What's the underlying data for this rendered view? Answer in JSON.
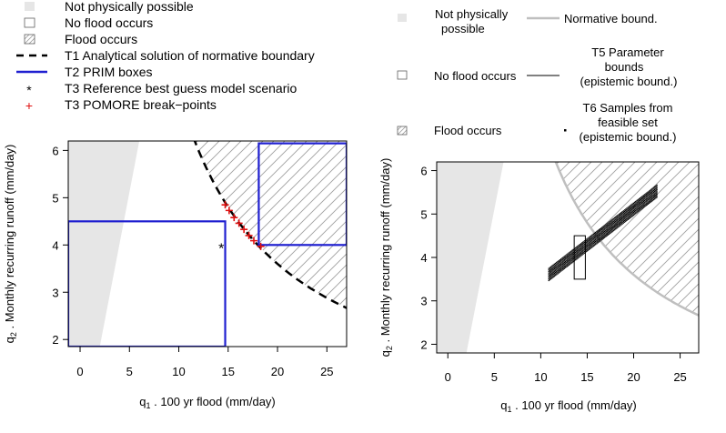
{
  "colors": {
    "infeasible_fill": "#e6e6e6",
    "hatch": "#a0a0a0",
    "prim_box": "#1f1fd0",
    "pomore": "#e01010",
    "normative_gray": "#bfbfbf",
    "ink": "#000000"
  },
  "left_legend": {
    "items": [
      {
        "key": "not-possible",
        "label": "Not physically possible"
      },
      {
        "key": "no-flood",
        "label": "No flood occurs"
      },
      {
        "key": "flood",
        "label": "Flood occurs"
      },
      {
        "key": "t1",
        "label": "T1 Analytical solution of normative boundary"
      },
      {
        "key": "t2",
        "label": "T2 PRIM boxes"
      },
      {
        "key": "t3ref",
        "label": "T3 Reference best guess model scenario"
      },
      {
        "key": "t3pom",
        "label": "T3 POMORE break−points"
      }
    ]
  },
  "right_legend": {
    "not_possible": [
      "Not physically",
      "possible"
    ],
    "normative": "Normative bound.",
    "no_flood": "No flood occurs",
    "t5": [
      "T5 Parameter",
      "bounds",
      "(epistemic bound.)"
    ],
    "flood": "Flood occurs",
    "t6": [
      "T6 Samples from",
      "feasible set",
      "(epistemic bound.)"
    ]
  },
  "chart_data": [
    {
      "type": "scatter",
      "xlabel_main": "q",
      "xlabel_sub": "1",
      "xlabel_rest": " . 100 yr flood (mm/day)",
      "ylabel_main": "q",
      "ylabel_sub": "2",
      "ylabel_rest": " . Monthly recurring runoff (mm/day)",
      "xlim": [
        -1.2,
        27
      ],
      "ylim": [
        1.85,
        6.2
      ],
      "xticks": [
        0,
        5,
        10,
        15,
        20,
        25
      ],
      "yticks": [
        2,
        3,
        4,
        5,
        6
      ],
      "infeasible_polygon": [
        [
          -1.2,
          1.85
        ],
        [
          2.0,
          1.85
        ],
        [
          6.0,
          6.2
        ],
        [
          -1.2,
          6.2
        ]
      ],
      "normative_boundary": "y = 72 / x",
      "prim_boxes": [
        {
          "x": [
            -1.2,
            14.7
          ],
          "y": [
            1.85,
            4.5
          ]
        },
        {
          "x": [
            18.1,
            27
          ],
          "y": [
            4.0,
            6.15
          ]
        }
      ],
      "reference_point": {
        "x": 14.3,
        "y": 4.0
      },
      "pomore_points": [
        {
          "x": 14.7,
          "y": 4.85
        },
        {
          "x": 15.1,
          "y": 4.73
        },
        {
          "x": 15.6,
          "y": 4.58
        },
        {
          "x": 16.1,
          "y": 4.46
        },
        {
          "x": 16.6,
          "y": 4.33
        },
        {
          "x": 17.1,
          "y": 4.2
        },
        {
          "x": 17.6,
          "y": 4.09
        },
        {
          "x": 18.3,
          "y": 3.97
        }
      ]
    },
    {
      "type": "scatter",
      "xlabel_main": "q",
      "xlabel_sub": "1",
      "xlabel_rest": " . 100 yr flood (mm/day)",
      "ylabel_main": "q",
      "ylabel_sub": "2",
      "ylabel_rest": " . Monthly recurring runoff (mm/day)",
      "xlim": [
        -1.2,
        27
      ],
      "ylim": [
        1.8,
        6.2
      ],
      "xticks": [
        0,
        5,
        10,
        15,
        20,
        25
      ],
      "yticks": [
        2,
        3,
        4,
        5,
        6
      ],
      "infeasible_polygon": [
        [
          -1.2,
          1.8
        ],
        [
          2.0,
          1.8
        ],
        [
          6.0,
          6.2
        ],
        [
          -1.2,
          6.2
        ]
      ],
      "normative_boundary": "y = 72 / x",
      "parameter_box": {
        "x": [
          13.6,
          14.8
        ],
        "y": [
          3.5,
          4.5
        ]
      },
      "sample_cloud": {
        "x_range": [
          10.8,
          22.5
        ],
        "center_line": [
          [
            10.8,
            3.62
          ],
          [
            22.5,
            5.55
          ]
        ],
        "half_width": 0.14
      }
    }
  ]
}
